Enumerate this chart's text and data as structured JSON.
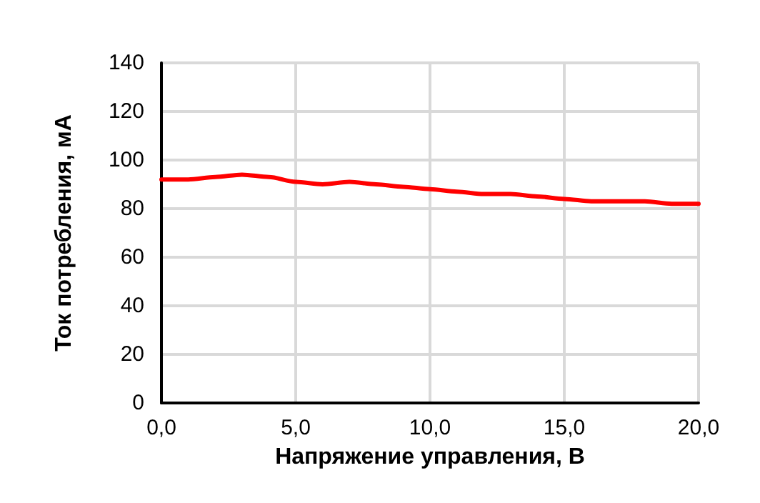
{
  "chart_data": {
    "type": "line",
    "xlabel": "Напряжение управления, В",
    "ylabel": "Ток потребления, мА",
    "x": [
      0,
      1,
      2,
      3,
      4,
      5,
      6,
      7,
      8,
      9,
      10,
      11,
      12,
      13,
      14,
      15,
      16,
      17,
      18,
      19,
      20
    ],
    "series": [
      {
        "color": "#ff0000",
        "values": [
          92,
          92,
          93,
          94,
          93,
          91,
          90,
          91,
          90,
          89,
          88,
          87,
          86,
          86,
          85,
          84,
          83,
          83,
          83,
          82,
          82
        ]
      }
    ],
    "xlim": [
      0,
      20
    ],
    "xticks": [
      {
        "value": 0,
        "label": "0,0"
      },
      {
        "value": 5,
        "label": "5,0"
      },
      {
        "value": 10,
        "label": "10,0"
      },
      {
        "value": 15,
        "label": "15,0"
      },
      {
        "value": 20,
        "label": "20,0"
      }
    ],
    "ylim": [
      0,
      140
    ],
    "yticks": [
      0,
      20,
      40,
      60,
      80,
      100,
      120,
      140
    ],
    "grid": true,
    "marker": "none",
    "line_style": "solid"
  }
}
